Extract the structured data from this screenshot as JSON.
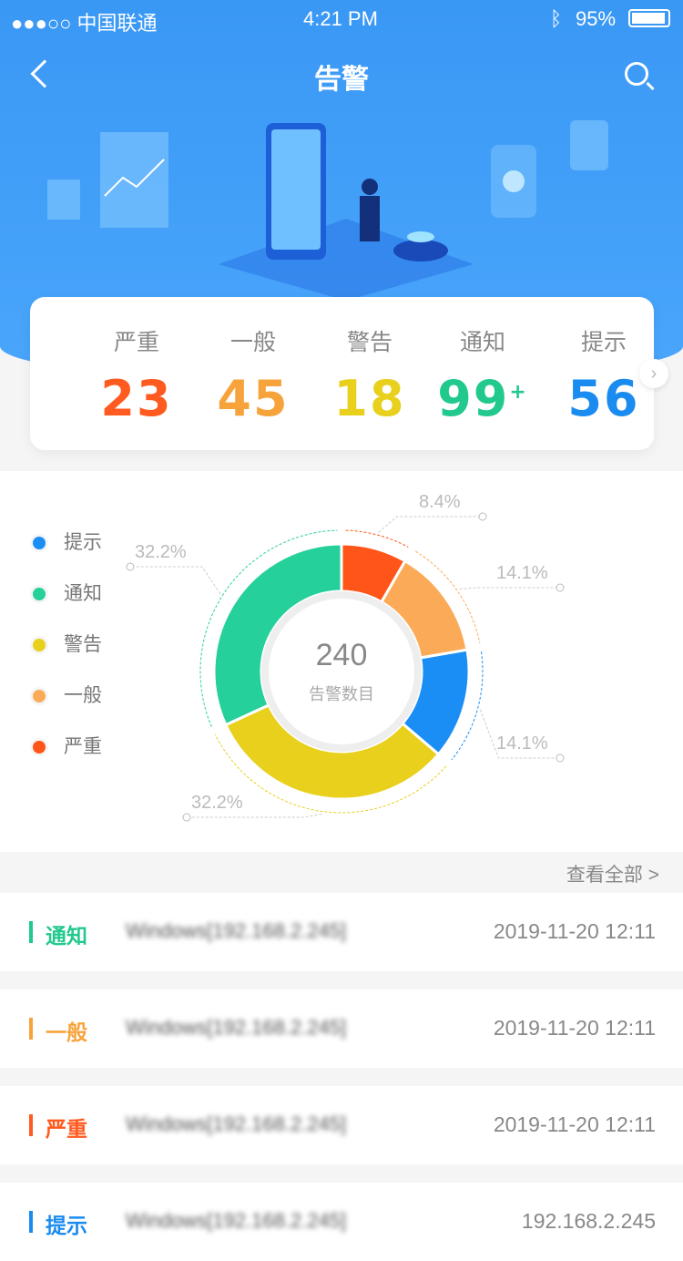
{
  "status_bar": {
    "carrier": "●●●○○ 中国联通",
    "time": "4:21 PM",
    "battery": "95%"
  },
  "header": {
    "title": "告警",
    "back_icon": "chevron-left-icon",
    "search_icon": "search-icon"
  },
  "summary": [
    {
      "label": "严重",
      "count": "23",
      "color": "#ff5a1f"
    },
    {
      "label": "一般",
      "count": "45",
      "color": "#f7a33b"
    },
    {
      "label": "警告",
      "count": "18",
      "color": "#e8d01c"
    },
    {
      "label": "通知",
      "count": "99",
      "sup": "+",
      "color": "#22c98d"
    },
    {
      "label": "提示",
      "count": "56",
      "color": "#1a8cf0"
    }
  ],
  "chart_data": {
    "type": "pie",
    "donut": true,
    "center_value": "240",
    "center_label": "告警数目",
    "legend": [
      "提示",
      "通知",
      "警告",
      "一般",
      "严重"
    ],
    "slices": [
      {
        "name": "严重",
        "percent": 8.4,
        "label": "8.4%",
        "color": "#ff5518"
      },
      {
        "name": "一般",
        "percent": 14.1,
        "label": "14.1%",
        "color": "#fbab58"
      },
      {
        "name": "提示",
        "percent": 14.1,
        "label": "14.1%",
        "color": "#1a8ef5"
      },
      {
        "name": "警告",
        "percent": 32.2,
        "label": "32.2%",
        "color": "#e8d01c"
      },
      {
        "name": "通知",
        "percent": 32.2,
        "label": "32.2%",
        "color": "#25d09a"
      }
    ]
  },
  "list": {
    "see_all": "查看全部  >",
    "items": [
      {
        "level": "通知",
        "color": "#22c98d",
        "desc": "Windows[192.168.2.245]",
        "time": "2019-11-20 12:11"
      },
      {
        "level": "一般",
        "color": "#f7a33b",
        "desc": "Windows[192.168.2.245]",
        "time": "2019-11-20 12:11"
      },
      {
        "level": "严重",
        "color": "#ff5a1f",
        "desc": "Windows[192.168.2.245]",
        "time": "2019-11-20 12:11"
      },
      {
        "level": "提示",
        "color": "#1a8cf0",
        "desc": "Windows[192.168.2.245]",
        "time": "192.168.2.245"
      }
    ]
  }
}
